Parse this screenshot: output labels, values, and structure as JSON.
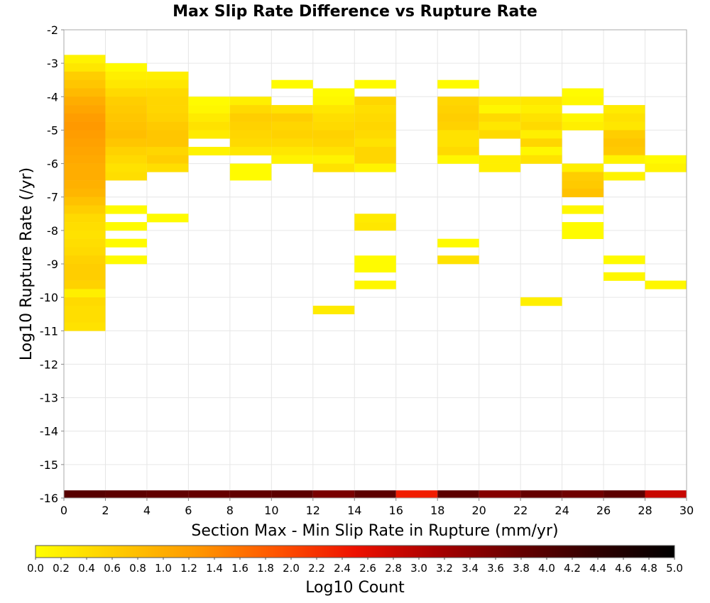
{
  "chart_data": {
    "type": "heatmap",
    "title": "Max Slip Rate Difference vs Rupture Rate",
    "xlabel": "Section Max - Min Slip Rate in Rupture (mm/yr)",
    "ylabel": "Log10 Rupture Rate (/yr)",
    "xlim": [
      0,
      30
    ],
    "ylim": [
      -16,
      -2
    ],
    "x_ticks": [
      "0",
      "2",
      "4",
      "6",
      "8",
      "10",
      "12",
      "14",
      "16",
      "18",
      "20",
      "22",
      "24",
      "26",
      "28",
      "30"
    ],
    "y_ticks": [
      "-2",
      "-3",
      "-4",
      "-5",
      "-6",
      "-7",
      "-8",
      "-9",
      "-10",
      "-11",
      "-12",
      "-13",
      "-14",
      "-15",
      "-16"
    ],
    "x_bin_width": 2,
    "y_bin_height": 0.25,
    "colorbar": {
      "label": "Log10 Count",
      "range": [
        0,
        5
      ],
      "ticks": [
        "0.0",
        "0.2",
        "0.4",
        "0.6",
        "0.8",
        "1.0",
        "1.2",
        "1.4",
        "1.6",
        "1.8",
        "2.0",
        "2.2",
        "2.4",
        "2.6",
        "2.8",
        "3.0",
        "3.2",
        "3.4",
        "3.6",
        "3.8",
        "4.0",
        "4.2",
        "4.4",
        "4.6",
        "4.8",
        "5.0"
      ],
      "colors": [
        "#ffff00",
        "#ffcc00",
        "#ff9900",
        "#ff5500",
        "#ee1100",
        "#aa0000",
        "#6a0000",
        "#300000",
        "#000000"
      ]
    },
    "columns": [
      {
        "x_start": 0,
        "bottom_value": 3.95,
        "cells": [
          [
            -2.75,
            0.15
          ],
          [
            -3.0,
            0.3
          ],
          [
            -3.25,
            0.6
          ],
          [
            -3.5,
            0.7
          ],
          [
            -3.75,
            0.85
          ],
          [
            -4.0,
            1.0
          ],
          [
            -4.25,
            1.1
          ],
          [
            -4.5,
            1.2
          ],
          [
            -4.75,
            1.25
          ],
          [
            -5.0,
            1.2
          ],
          [
            -5.25,
            1.15
          ],
          [
            -5.5,
            1.1
          ],
          [
            -5.75,
            1.05
          ],
          [
            -6.0,
            1.0
          ],
          [
            -6.25,
            1.0
          ],
          [
            -6.5,
            0.95
          ],
          [
            -6.75,
            0.9
          ],
          [
            -7.0,
            0.75
          ],
          [
            -7.25,
            0.6
          ],
          [
            -7.5,
            0.45
          ],
          [
            -7.75,
            0.4
          ],
          [
            -8.0,
            0.35
          ],
          [
            -8.25,
            0.4
          ],
          [
            -8.5,
            0.45
          ],
          [
            -8.75,
            0.55
          ],
          [
            -9.0,
            0.6
          ],
          [
            -9.25,
            0.6
          ],
          [
            -9.5,
            0.55
          ],
          [
            -9.75,
            0.2
          ],
          [
            -10.0,
            0.45
          ],
          [
            -10.25,
            0.4
          ],
          [
            -10.5,
            0.4
          ],
          [
            -10.75,
            0.35
          ]
        ]
      },
      {
        "x_start": 2,
        "bottom_value": 3.9,
        "cells": [
          [
            -3.0,
            0.05
          ],
          [
            -3.25,
            0.2
          ],
          [
            -3.5,
            0.3
          ],
          [
            -3.75,
            0.45
          ],
          [
            -4.0,
            0.6
          ],
          [
            -4.25,
            0.65
          ],
          [
            -4.5,
            0.7
          ],
          [
            -4.75,
            0.75
          ],
          [
            -5.0,
            0.8
          ],
          [
            -5.25,
            0.7
          ],
          [
            -5.5,
            0.55
          ],
          [
            -5.75,
            0.45
          ],
          [
            -6.0,
            0.35
          ],
          [
            -6.25,
            0.4
          ],
          [
            -7.25,
            0.05
          ],
          [
            -7.75,
            0.05
          ],
          [
            -8.25,
            0.05
          ],
          [
            -8.75,
            0.05
          ]
        ]
      },
      {
        "x_start": 4,
        "bottom_value": 3.85,
        "cells": [
          [
            -3.25,
            0.2
          ],
          [
            -3.5,
            0.3
          ],
          [
            -3.75,
            0.45
          ],
          [
            -4.0,
            0.5
          ],
          [
            -4.25,
            0.5
          ],
          [
            -4.5,
            0.55
          ],
          [
            -4.75,
            0.65
          ],
          [
            -5.0,
            0.7
          ],
          [
            -5.25,
            0.7
          ],
          [
            -5.5,
            0.5
          ],
          [
            -5.75,
            0.6
          ],
          [
            -6.0,
            0.4
          ],
          [
            -7.5,
            0.05
          ]
        ]
      },
      {
        "x_start": 6,
        "bottom_value": 3.8,
        "cells": [
          [
            -4.0,
            0.05
          ],
          [
            -4.25,
            0.1
          ],
          [
            -4.5,
            0.25
          ],
          [
            -4.75,
            0.35
          ],
          [
            -5.0,
            0.25
          ],
          [
            -5.5,
            0.15
          ]
        ]
      },
      {
        "x_start": 8,
        "bottom_value": 3.85,
        "cells": [
          [
            -4.0,
            0.2
          ],
          [
            -4.25,
            0.45
          ],
          [
            -4.5,
            0.6
          ],
          [
            -4.75,
            0.55
          ],
          [
            -5.0,
            0.5
          ],
          [
            -5.25,
            0.45
          ],
          [
            -5.5,
            0.3
          ],
          [
            -6.0,
            0.05
          ],
          [
            -6.25,
            0.05
          ]
        ]
      },
      {
        "x_start": 10,
        "bottom_value": 3.9,
        "cells": [
          [
            -3.5,
            0.05
          ],
          [
            -4.25,
            0.35
          ],
          [
            -4.5,
            0.6
          ],
          [
            -4.75,
            0.5
          ],
          [
            -5.0,
            0.55
          ],
          [
            -5.25,
            0.45
          ],
          [
            -5.5,
            0.3
          ],
          [
            -5.75,
            0.15
          ]
        ]
      },
      {
        "x_start": 12,
        "bottom_value": 3.6,
        "cells": [
          [
            -3.75,
            0.05
          ],
          [
            -4.0,
            0.1
          ],
          [
            -4.25,
            0.3
          ],
          [
            -4.5,
            0.4
          ],
          [
            -4.75,
            0.45
          ],
          [
            -5.0,
            0.55
          ],
          [
            -5.25,
            0.5
          ],
          [
            -5.5,
            0.35
          ],
          [
            -5.75,
            0.15
          ],
          [
            -6.0,
            0.35
          ],
          [
            -10.25,
            0.25
          ]
        ]
      },
      {
        "x_start": 14,
        "bottom_value": 3.9,
        "cells": [
          [
            -3.5,
            0.05
          ],
          [
            -4.0,
            0.5
          ],
          [
            -4.25,
            0.4
          ],
          [
            -4.5,
            0.45
          ],
          [
            -4.75,
            0.5
          ],
          [
            -5.0,
            0.45
          ],
          [
            -5.25,
            0.35
          ],
          [
            -5.5,
            0.5
          ],
          [
            -5.75,
            0.5
          ],
          [
            -6.0,
            0.15
          ],
          [
            -7.5,
            0.25
          ],
          [
            -7.75,
            0.3
          ],
          [
            -8.75,
            0.05
          ],
          [
            -9.0,
            0.05
          ],
          [
            -9.5,
            0.1
          ]
        ]
      },
      {
        "x_start": 16,
        "bottom_value": 2.4,
        "cells": []
      },
      {
        "x_start": 18,
        "bottom_value": 3.9,
        "cells": [
          [
            -3.5,
            0.05
          ],
          [
            -4.0,
            0.5
          ],
          [
            -4.25,
            0.55
          ],
          [
            -4.5,
            0.6
          ],
          [
            -4.75,
            0.55
          ],
          [
            -5.0,
            0.35
          ],
          [
            -5.25,
            0.35
          ],
          [
            -5.5,
            0.45
          ],
          [
            -5.75,
            0.1
          ],
          [
            -8.25,
            0.05
          ],
          [
            -8.75,
            0.35
          ]
        ]
      },
      {
        "x_start": 20,
        "bottom_value": 3.5,
        "cells": [
          [
            -4.0,
            0.25
          ],
          [
            -4.25,
            0.1
          ],
          [
            -4.5,
            0.45
          ],
          [
            -4.75,
            0.3
          ],
          [
            -5.0,
            0.45
          ],
          [
            -5.75,
            0.2
          ],
          [
            -6.0,
            0.2
          ]
        ]
      },
      {
        "x_start": 22,
        "bottom_value": 3.8,
        "cells": [
          [
            -4.0,
            0.3
          ],
          [
            -4.25,
            0.2
          ],
          [
            -4.5,
            0.35
          ],
          [
            -4.75,
            0.45
          ],
          [
            -5.0,
            0.2
          ],
          [
            -5.25,
            0.5
          ],
          [
            -5.5,
            0.1
          ],
          [
            -5.75,
            0.35
          ],
          [
            -10.0,
            0.2
          ]
        ]
      },
      {
        "x_start": 24,
        "bottom_value": 3.7,
        "cells": [
          [
            -3.75,
            0.05
          ],
          [
            -4.0,
            0.1
          ],
          [
            -4.5,
            0.1
          ],
          [
            -4.75,
            0.2
          ],
          [
            -6.0,
            0.2
          ],
          [
            -6.25,
            0.6
          ],
          [
            -6.5,
            0.65
          ],
          [
            -6.75,
            0.75
          ],
          [
            -7.25,
            0.1
          ],
          [
            -7.75,
            0.05
          ],
          [
            -8.0,
            0.05
          ]
        ]
      },
      {
        "x_start": 26,
        "bottom_value": 3.9,
        "cells": [
          [
            -4.25,
            0.25
          ],
          [
            -4.5,
            0.35
          ],
          [
            -4.75,
            0.3
          ],
          [
            -5.0,
            0.6
          ],
          [
            -5.25,
            0.7
          ],
          [
            -5.5,
            0.65
          ],
          [
            -5.75,
            0.15
          ],
          [
            -6.25,
            0.15
          ],
          [
            -8.75,
            0.05
          ],
          [
            -9.25,
            0.1
          ]
        ]
      },
      {
        "x_start": 28,
        "bottom_value": 2.85,
        "cells": [
          [
            -5.75,
            0.05
          ],
          [
            -6.0,
            0.15
          ],
          [
            -9.5,
            0.1
          ]
        ]
      }
    ]
  }
}
